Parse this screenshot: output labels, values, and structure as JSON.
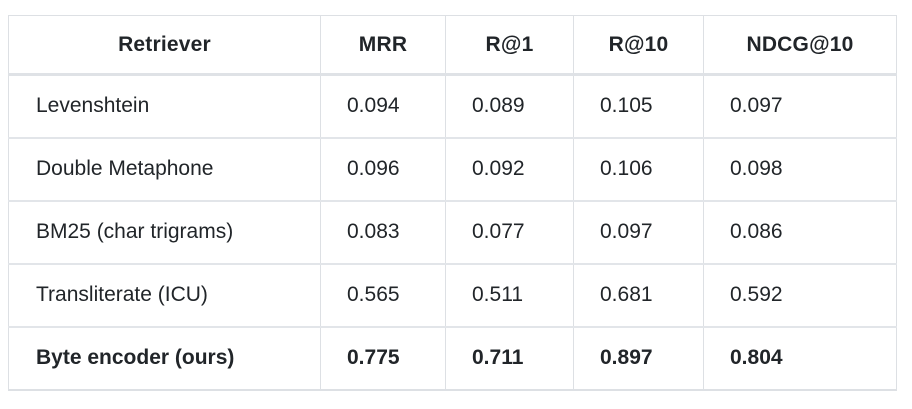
{
  "chart_data": {
    "type": "table",
    "title": "",
    "columns": [
      "Retriever",
      "MRR",
      "R@1",
      "R@10",
      "NDCG@10"
    ],
    "rows": [
      {
        "label": "Levenshtein",
        "values": [
          "0.094",
          "0.089",
          "0.105",
          "0.097"
        ],
        "bold": false
      },
      {
        "label": "Double Metaphone",
        "values": [
          "0.096",
          "0.092",
          "0.106",
          "0.098"
        ],
        "bold": false
      },
      {
        "label": "BM25 (char trigrams)",
        "values": [
          "0.083",
          "0.077",
          "0.097",
          "0.086"
        ],
        "bold": false
      },
      {
        "label": "Transliterate (ICU)",
        "values": [
          "0.565",
          "0.511",
          "0.681",
          "0.592"
        ],
        "bold": false
      },
      {
        "label": "Byte encoder (ours)",
        "values": [
          "0.775",
          "0.711",
          "0.897",
          "0.804"
        ],
        "bold": true
      }
    ],
    "layout": {
      "header_style": "bold-centered",
      "cell_alignment": "left",
      "grid": true,
      "border_color": "#dde0e4",
      "text_color": "#212529",
      "background_color": "#ffffff"
    }
  }
}
